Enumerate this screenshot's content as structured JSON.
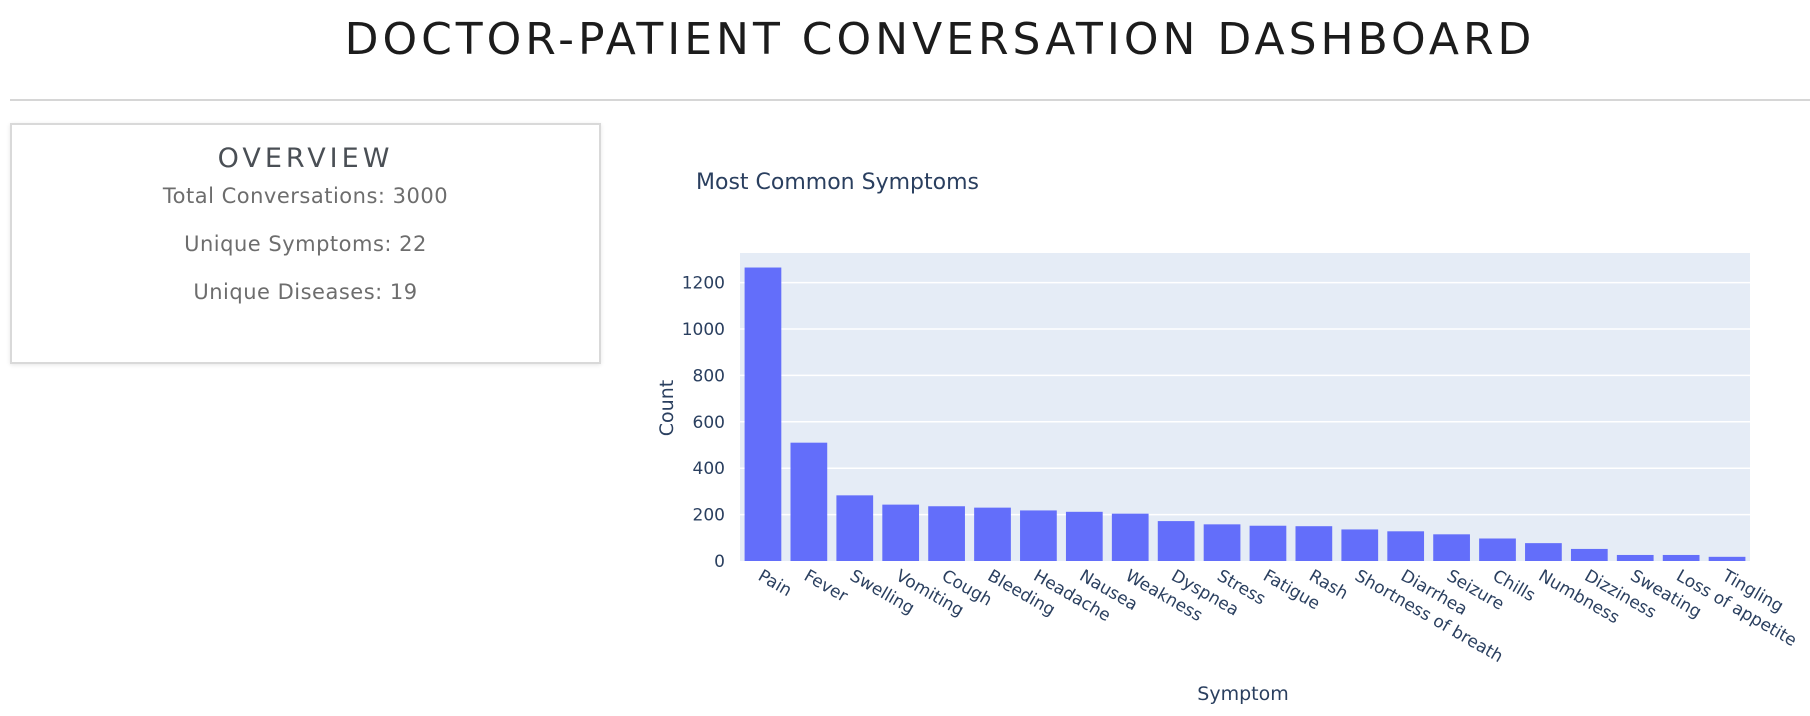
{
  "header": {
    "title": "DOCTOR-PATIENT CONVERSATION DASHBOARD"
  },
  "overview": {
    "heading": "OVERVIEW",
    "total_conversations": "Total Conversations: 3000",
    "unique_symptoms": "Unique Symptoms: 22",
    "unique_diseases": "Unique Diseases: 19"
  },
  "colors": {
    "bar": "#636efa",
    "plot_bg": "#e5ecf6",
    "text": "#2a3f5f",
    "grid": "#ffffff"
  },
  "chart_data": {
    "type": "bar",
    "title": "Most Common Symptoms",
    "xlabel": "Symptom",
    "ylabel": "Count",
    "ylim": [
      0,
      1330
    ],
    "yticks": [
      0,
      200,
      400,
      600,
      800,
      1000,
      1200
    ],
    "grid": true,
    "categories": [
      "Pain",
      "Fever",
      "Swelling",
      "Vomiting",
      "Cough",
      "Bleeding",
      "Headache",
      "Nausea",
      "Weakness",
      "Dyspnea",
      "Stress",
      "Fatigue",
      "Rash",
      "Shortness of breath",
      "Diarrhea",
      "Seizure",
      "Chills",
      "Numbness",
      "Dizziness",
      "Sweating",
      "Loss of appetite",
      "Tingling"
    ],
    "values": [
      1265,
      510,
      283,
      243,
      236,
      230,
      218,
      212,
      204,
      172,
      158,
      152,
      150,
      136,
      128,
      115,
      97,
      77,
      52,
      26,
      26,
      18
    ]
  }
}
